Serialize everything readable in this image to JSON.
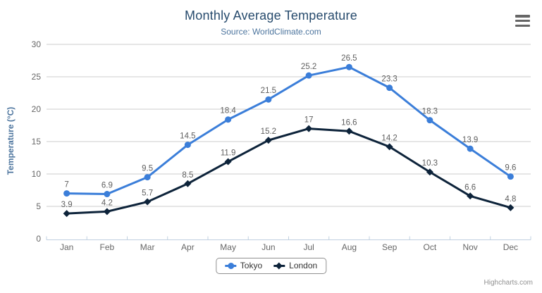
{
  "header": {
    "title": "Monthly Average Temperature",
    "subtitle": "Source: WorldClimate.com"
  },
  "export_menu": {
    "icon": "hamburger-icon",
    "bar_count": 3
  },
  "credits": {
    "label": "Highcharts.com"
  },
  "chart_data": {
    "type": "line",
    "title": "Monthly Average Temperature",
    "subtitle": "Source: WorldClimate.com",
    "categories": [
      "Jan",
      "Feb",
      "Mar",
      "Apr",
      "May",
      "Jun",
      "Jul",
      "Aug",
      "Sep",
      "Oct",
      "Nov",
      "Dec"
    ],
    "series": [
      {
        "name": "Tokyo",
        "color": "#3b7ed9",
        "marker": "circle",
        "values": [
          7,
          6.9,
          9.5,
          14.5,
          18.4,
          21.5,
          25.2,
          26.5,
          23.3,
          18.3,
          13.9,
          9.6
        ]
      },
      {
        "name": "London",
        "color": "#0d233a",
        "marker": "diamond",
        "values": [
          3.9,
          4.2,
          5.7,
          8.5,
          11.9,
          15.2,
          17,
          16.6,
          14.2,
          10.3,
          6.6,
          4.8
        ]
      }
    ],
    "xlabel": "",
    "ylabel": "Temperature (°C)",
    "ylim": [
      0,
      30
    ],
    "yticks": [
      0,
      5,
      10,
      15,
      20,
      25,
      30
    ],
    "grid": true,
    "data_labels": true,
    "legend_position": "bottom-center"
  },
  "colors": {
    "title": "#274b6d",
    "subtitle": "#4d759e",
    "y_axis_title": "#4d759e",
    "axis_labels": "#666666",
    "data_labels": "#606060",
    "grid_line": "#cccccc",
    "axis_line": "#c0d0e0",
    "legend_border": "#909090",
    "legend_text": "#333333",
    "credits": "#909090",
    "menu_icon": "#666666"
  }
}
